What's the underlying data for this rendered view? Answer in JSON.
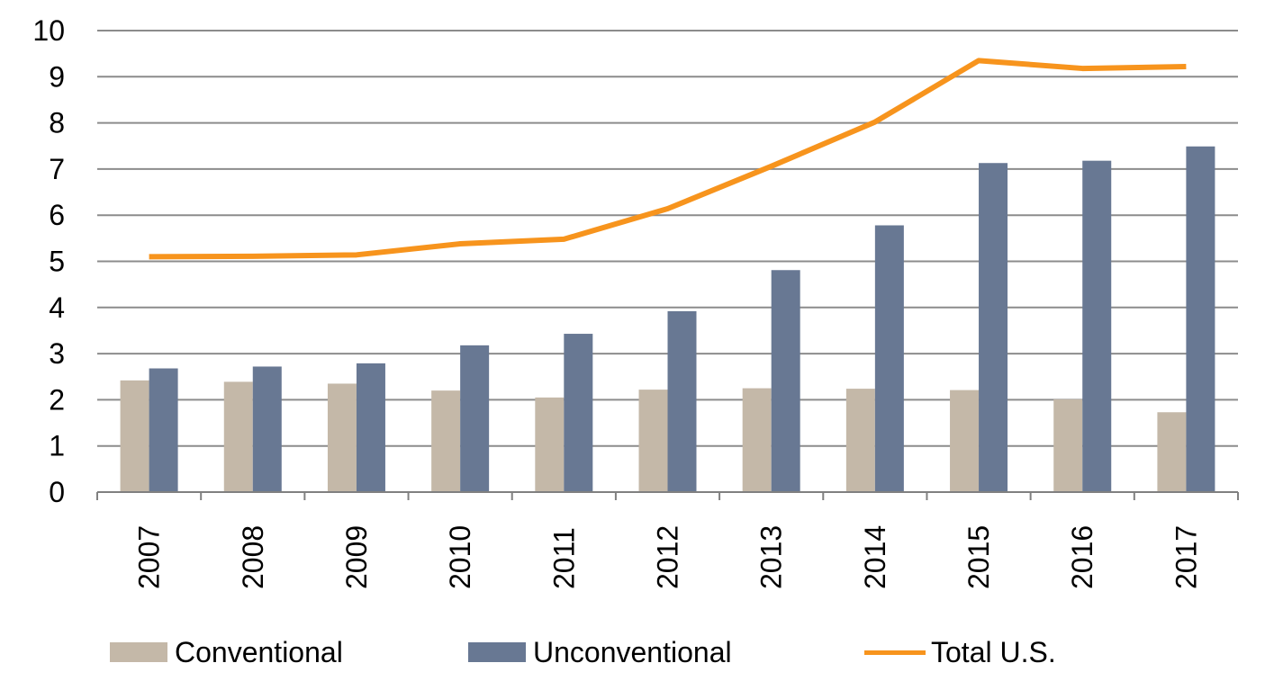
{
  "chart_data": {
    "type": "bar",
    "categories": [
      "2007",
      "2008",
      "2009",
      "2010",
      "2011",
      "2012",
      "2013",
      "2014",
      "2015",
      "2016",
      "2017"
    ],
    "series": [
      {
        "name": "Conventional",
        "type": "bar",
        "color": "#c4b8a8",
        "values": [
          2.42,
          2.39,
          2.35,
          2.2,
          2.05,
          2.22,
          2.25,
          2.24,
          2.21,
          2.01,
          1.73
        ]
      },
      {
        "name": "Unconventional",
        "type": "bar",
        "color": "#687893",
        "values": [
          2.68,
          2.72,
          2.79,
          3.18,
          3.43,
          3.92,
          4.81,
          5.78,
          7.13,
          7.18,
          7.49
        ]
      },
      {
        "name": "Total U.S.",
        "type": "line",
        "color": "#f7941d",
        "values": [
          5.1,
          5.11,
          5.14,
          5.38,
          5.48,
          6.14,
          7.06,
          8.02,
          9.35,
          9.18,
          9.22
        ]
      }
    ],
    "ylim": [
      0,
      10
    ],
    "yticks": [
      0,
      1,
      2,
      3,
      4,
      5,
      6,
      7,
      8,
      9,
      10
    ],
    "grid": true,
    "legend_position": "bottom",
    "title": "",
    "xlabel": "",
    "ylabel": ""
  }
}
